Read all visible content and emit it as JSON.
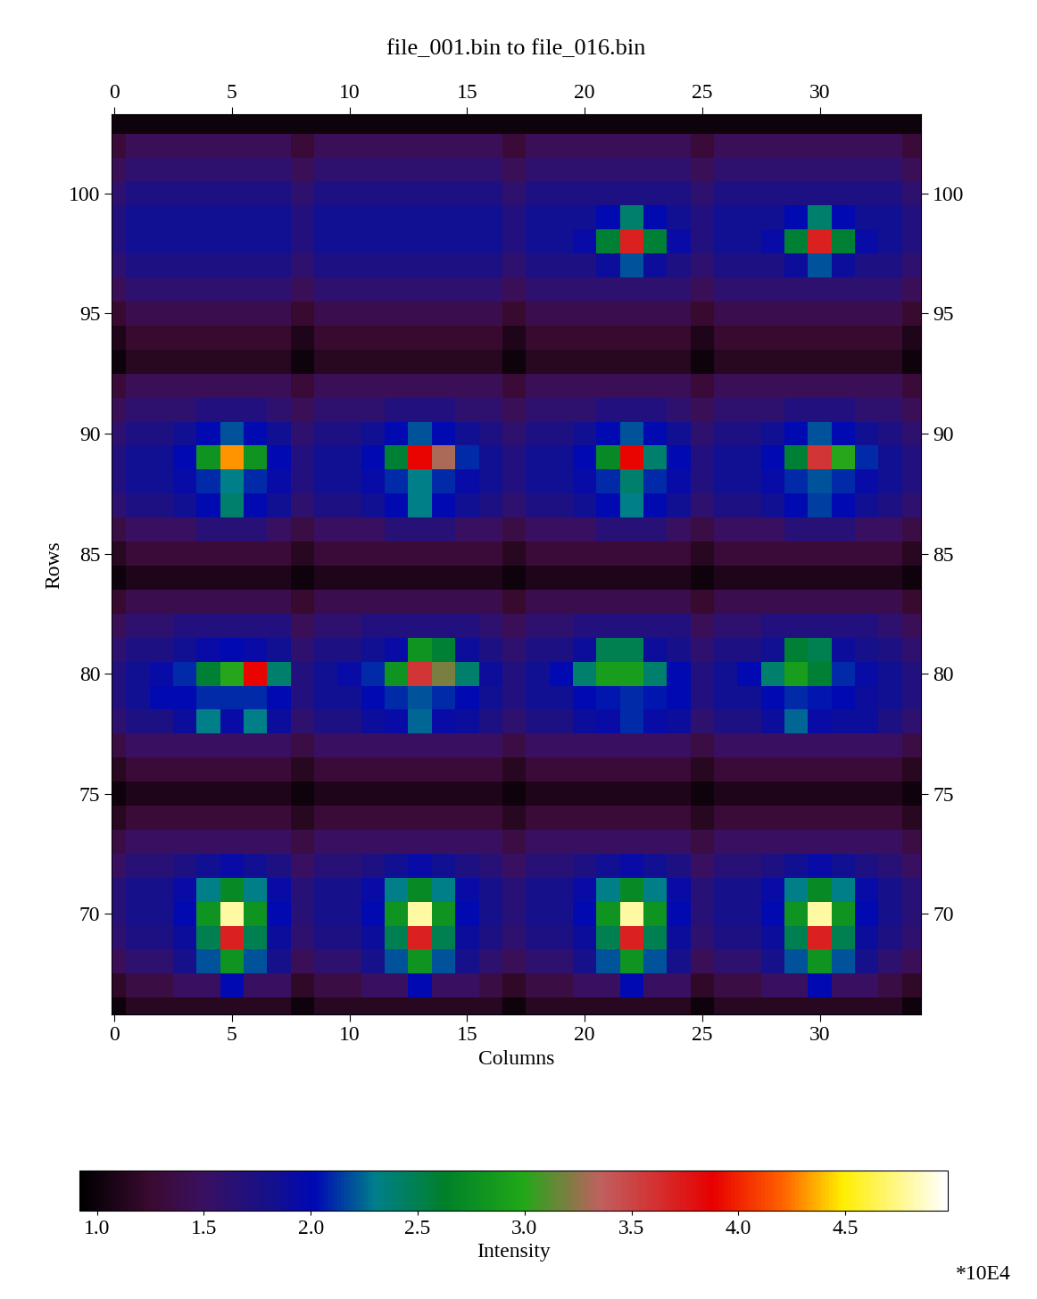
{
  "chart_data": {
    "type": "heatmap",
    "title": "file_001.bin to file_016.bin",
    "x_label": "Columns",
    "y_label": "Rows",
    "xlim": [
      -0.1,
      34.3
    ],
    "ylim": [
      65.8,
      103.3
    ],
    "xticks": [
      0,
      5,
      10,
      15,
      20,
      25,
      30
    ],
    "yticks": [
      70,
      75,
      80,
      85,
      90,
      95,
      100
    ],
    "x": [
      0,
      1,
      2,
      3,
      4,
      5,
      6,
      7,
      8,
      9,
      10,
      11,
      12,
      13,
      14,
      15,
      16,
      17,
      18,
      19,
      20,
      21,
      22,
      23,
      24,
      25,
      26,
      27,
      28,
      29,
      30,
      31,
      32,
      33,
      34
    ],
    "y": [
      66,
      67,
      68,
      69,
      70,
      71,
      72,
      73,
      74,
      75,
      76,
      77,
      78,
      79,
      80,
      81,
      82,
      83,
      84,
      85,
      86,
      87,
      88,
      89,
      90,
      91,
      92,
      93,
      94,
      95,
      96,
      97,
      98,
      99,
      100,
      101,
      102,
      103
    ],
    "cells": [
      [
        1.0,
        1.15,
        1.15,
        1.15,
        1.15,
        1.15,
        1.15,
        1.15,
        1.0,
        1.15,
        1.15,
        1.15,
        1.15,
        1.15,
        1.15,
        1.15,
        1.15,
        1.0,
        1.15,
        1.15,
        1.15,
        1.15,
        1.15,
        1.15,
        1.15,
        1.0,
        1.15,
        1.15,
        1.15,
        1.15,
        1.15,
        1.15,
        1.15,
        1.15,
        1.0
      ],
      [
        1.2,
        1.35,
        1.35,
        1.5,
        1.5,
        2.0,
        1.5,
        1.5,
        1.2,
        1.35,
        1.35,
        1.5,
        1.5,
        2.0,
        1.5,
        1.5,
        1.35,
        1.2,
        1.35,
        1.35,
        1.5,
        1.5,
        2.0,
        1.5,
        1.5,
        1.2,
        1.35,
        1.35,
        1.5,
        1.5,
        2.0,
        1.5,
        1.5,
        1.35,
        1.2
      ],
      [
        1.45,
        1.6,
        1.6,
        1.8,
        2.2,
        2.8,
        2.2,
        1.8,
        1.45,
        1.6,
        1.6,
        1.8,
        2.2,
        2.8,
        2.2,
        1.8,
        1.6,
        1.45,
        1.6,
        1.6,
        1.8,
        2.2,
        2.8,
        2.2,
        1.8,
        1.45,
        1.6,
        1.6,
        1.8,
        2.2,
        2.8,
        2.2,
        1.8,
        1.6,
        1.45
      ],
      [
        1.6,
        1.75,
        1.75,
        1.9,
        2.5,
        3.7,
        2.5,
        1.9,
        1.6,
        1.75,
        1.75,
        1.9,
        2.5,
        3.7,
        2.5,
        1.9,
        1.75,
        1.6,
        1.75,
        1.75,
        1.9,
        2.5,
        3.7,
        2.5,
        1.9,
        1.6,
        1.75,
        1.75,
        1.9,
        2.5,
        3.7,
        2.5,
        1.9,
        1.75,
        1.6
      ],
      [
        1.65,
        1.8,
        1.8,
        2.0,
        2.8,
        4.8,
        2.8,
        2.0,
        1.65,
        1.8,
        1.8,
        2.0,
        2.8,
        4.8,
        2.8,
        2.0,
        1.8,
        1.65,
        1.8,
        1.8,
        2.0,
        2.8,
        4.8,
        2.8,
        2.0,
        1.65,
        1.8,
        1.8,
        2.0,
        2.8,
        4.8,
        2.8,
        2.0,
        1.8,
        1.65
      ],
      [
        1.65,
        1.8,
        1.8,
        1.95,
        2.3,
        2.7,
        2.3,
        1.95,
        1.65,
        1.8,
        1.8,
        1.95,
        2.3,
        2.7,
        2.3,
        1.95,
        1.8,
        1.65,
        1.8,
        1.8,
        1.95,
        2.3,
        2.7,
        2.3,
        1.95,
        1.65,
        1.8,
        1.8,
        1.95,
        2.3,
        2.7,
        2.3,
        1.95,
        1.8,
        1.65
      ],
      [
        1.5,
        1.65,
        1.65,
        1.75,
        1.85,
        1.95,
        1.85,
        1.75,
        1.5,
        1.65,
        1.65,
        1.75,
        1.85,
        1.95,
        1.85,
        1.75,
        1.65,
        1.5,
        1.65,
        1.65,
        1.75,
        1.85,
        1.95,
        1.85,
        1.75,
        1.5,
        1.65,
        1.65,
        1.75,
        1.85,
        1.95,
        1.85,
        1.75,
        1.65,
        1.5
      ],
      [
        1.35,
        1.5,
        1.5,
        1.5,
        1.5,
        1.5,
        1.5,
        1.5,
        1.35,
        1.5,
        1.5,
        1.5,
        1.5,
        1.5,
        1.5,
        1.5,
        1.5,
        1.35,
        1.5,
        1.5,
        1.5,
        1.5,
        1.5,
        1.5,
        1.5,
        1.35,
        1.5,
        1.5,
        1.5,
        1.5,
        1.5,
        1.5,
        1.5,
        1.5,
        1.35
      ],
      [
        1.15,
        1.3,
        1.3,
        1.3,
        1.3,
        1.3,
        1.3,
        1.3,
        1.15,
        1.3,
        1.3,
        1.3,
        1.3,
        1.3,
        1.3,
        1.3,
        1.3,
        1.15,
        1.3,
        1.3,
        1.3,
        1.3,
        1.3,
        1.3,
        1.3,
        1.15,
        1.3,
        1.3,
        1.3,
        1.3,
        1.3,
        1.3,
        1.3,
        1.3,
        1.15
      ],
      [
        1.0,
        1.1,
        1.1,
        1.1,
        1.1,
        1.1,
        1.1,
        1.1,
        1.0,
        1.1,
        1.1,
        1.1,
        1.1,
        1.1,
        1.1,
        1.1,
        1.1,
        1.0,
        1.1,
        1.1,
        1.1,
        1.1,
        1.1,
        1.1,
        1.1,
        1.0,
        1.1,
        1.1,
        1.1,
        1.1,
        1.1,
        1.1,
        1.1,
        1.1,
        1.0
      ],
      [
        1.15,
        1.3,
        1.3,
        1.3,
        1.3,
        1.3,
        1.3,
        1.3,
        1.15,
        1.3,
        1.3,
        1.3,
        1.3,
        1.3,
        1.3,
        1.3,
        1.3,
        1.15,
        1.3,
        1.3,
        1.3,
        1.3,
        1.3,
        1.3,
        1.3,
        1.15,
        1.3,
        1.3,
        1.3,
        1.3,
        1.3,
        1.3,
        1.3,
        1.3,
        1.15
      ],
      [
        1.35,
        1.5,
        1.5,
        1.5,
        1.5,
        1.5,
        1.5,
        1.5,
        1.35,
        1.5,
        1.5,
        1.5,
        1.5,
        1.5,
        1.5,
        1.5,
        1.5,
        1.35,
        1.5,
        1.5,
        1.5,
        1.5,
        1.5,
        1.5,
        1.5,
        1.35,
        1.5,
        1.5,
        1.5,
        1.5,
        1.5,
        1.5,
        1.5,
        1.5,
        1.35
      ],
      [
        1.6,
        1.75,
        1.75,
        1.9,
        2.3,
        1.95,
        2.3,
        1.9,
        1.6,
        1.75,
        1.75,
        1.9,
        1.95,
        2.25,
        1.95,
        1.9,
        1.75,
        1.6,
        1.75,
        1.75,
        1.9,
        1.95,
        2.1,
        1.95,
        1.9,
        1.6,
        1.75,
        1.75,
        1.9,
        2.25,
        1.95,
        1.9,
        1.9,
        1.75,
        1.6
      ],
      [
        1.7,
        1.85,
        2.0,
        2.0,
        2.1,
        2.1,
        2.1,
        2.0,
        1.7,
        1.85,
        1.85,
        2.0,
        2.1,
        2.2,
        2.1,
        2.0,
        1.85,
        1.7,
        1.85,
        1.85,
        2.0,
        2.05,
        2.1,
        2.05,
        2.0,
        1.7,
        1.85,
        1.85,
        2.0,
        2.1,
        2.05,
        2.0,
        1.9,
        1.85,
        1.7
      ],
      [
        1.7,
        1.85,
        1.95,
        2.1,
        2.6,
        3.0,
        3.9,
        2.4,
        1.7,
        1.85,
        1.95,
        2.1,
        2.8,
        3.6,
        3.2,
        2.4,
        1.9,
        1.7,
        1.85,
        2.0,
        2.4,
        2.9,
        2.9,
        2.4,
        2.0,
        1.7,
        1.85,
        2.0,
        2.4,
        2.9,
        2.6,
        2.1,
        1.95,
        1.85,
        1.7
      ],
      [
        1.6,
        1.75,
        1.75,
        1.85,
        1.95,
        2.0,
        1.95,
        1.85,
        1.6,
        1.75,
        1.75,
        1.85,
        1.95,
        2.8,
        2.6,
        1.9,
        1.75,
        1.6,
        1.75,
        1.75,
        1.9,
        2.5,
        2.5,
        1.9,
        1.8,
        1.6,
        1.75,
        1.75,
        1.85,
        2.6,
        2.5,
        1.9,
        1.8,
        1.75,
        1.6
      ],
      [
        1.45,
        1.6,
        1.6,
        1.7,
        1.7,
        1.7,
        1.7,
        1.7,
        1.45,
        1.6,
        1.6,
        1.7,
        1.7,
        1.7,
        1.7,
        1.7,
        1.6,
        1.45,
        1.6,
        1.6,
        1.7,
        1.7,
        1.7,
        1.7,
        1.7,
        1.45,
        1.6,
        1.6,
        1.7,
        1.7,
        1.7,
        1.7,
        1.7,
        1.6,
        1.45
      ],
      [
        1.25,
        1.4,
        1.4,
        1.4,
        1.4,
        1.4,
        1.4,
        1.4,
        1.25,
        1.4,
        1.4,
        1.4,
        1.4,
        1.4,
        1.4,
        1.4,
        1.4,
        1.25,
        1.4,
        1.4,
        1.4,
        1.4,
        1.4,
        1.4,
        1.4,
        1.25,
        1.4,
        1.4,
        1.4,
        1.4,
        1.4,
        1.4,
        1.4,
        1.4,
        1.25
      ],
      [
        1.0,
        1.1,
        1.1,
        1.1,
        1.1,
        1.1,
        1.1,
        1.1,
        1.0,
        1.1,
        1.1,
        1.1,
        1.1,
        1.1,
        1.1,
        1.1,
        1.1,
        1.0,
        1.1,
        1.1,
        1.1,
        1.1,
        1.1,
        1.1,
        1.1,
        1.0,
        1.1,
        1.1,
        1.1,
        1.1,
        1.1,
        1.1,
        1.1,
        1.1,
        1.0
      ],
      [
        1.15,
        1.3,
        1.3,
        1.3,
        1.3,
        1.3,
        1.3,
        1.3,
        1.15,
        1.3,
        1.3,
        1.3,
        1.3,
        1.3,
        1.3,
        1.3,
        1.3,
        1.15,
        1.3,
        1.3,
        1.3,
        1.3,
        1.3,
        1.3,
        1.3,
        1.15,
        1.3,
        1.3,
        1.3,
        1.3,
        1.3,
        1.3,
        1.3,
        1.3,
        1.15
      ],
      [
        1.35,
        1.5,
        1.5,
        1.5,
        1.65,
        1.65,
        1.65,
        1.5,
        1.35,
        1.5,
        1.5,
        1.5,
        1.65,
        1.65,
        1.65,
        1.5,
        1.5,
        1.35,
        1.5,
        1.5,
        1.5,
        1.65,
        1.65,
        1.65,
        1.5,
        1.35,
        1.5,
        1.5,
        1.5,
        1.65,
        1.65,
        1.65,
        1.5,
        1.5,
        1.35
      ],
      [
        1.6,
        1.75,
        1.75,
        1.85,
        2.0,
        2.4,
        2.0,
        1.85,
        1.6,
        1.75,
        1.75,
        1.85,
        2.0,
        2.3,
        2.0,
        1.85,
        1.75,
        1.6,
        1.75,
        1.75,
        1.85,
        2.0,
        2.3,
        2.0,
        1.85,
        1.6,
        1.75,
        1.75,
        1.85,
        2.0,
        2.15,
        2.0,
        1.85,
        1.75,
        1.6
      ],
      [
        1.7,
        1.85,
        1.85,
        1.95,
        2.1,
        2.3,
        2.1,
        1.95,
        1.7,
        1.85,
        1.85,
        1.95,
        2.1,
        2.3,
        2.1,
        1.95,
        1.85,
        1.7,
        1.85,
        1.85,
        1.95,
        2.1,
        2.4,
        2.1,
        1.95,
        1.7,
        1.85,
        1.85,
        1.95,
        2.1,
        2.2,
        2.1,
        1.95,
        1.85,
        1.7
      ],
      [
        1.7,
        1.85,
        1.85,
        2.0,
        2.8,
        4.3,
        2.8,
        2.0,
        1.7,
        1.85,
        1.85,
        2.0,
        2.6,
        3.9,
        3.3,
        2.1,
        1.85,
        1.7,
        1.85,
        1.85,
        2.0,
        2.7,
        3.9,
        2.4,
        2.0,
        1.7,
        1.85,
        1.85,
        2.0,
        2.6,
        3.6,
        3.0,
        2.1,
        1.85,
        1.7
      ],
      [
        1.6,
        1.75,
        1.75,
        1.85,
        2.0,
        2.2,
        2.0,
        1.85,
        1.6,
        1.75,
        1.75,
        1.85,
        2.0,
        2.2,
        2.0,
        1.85,
        1.75,
        1.6,
        1.75,
        1.75,
        1.85,
        2.0,
        2.2,
        2.0,
        1.85,
        1.6,
        1.75,
        1.75,
        1.85,
        2.0,
        2.2,
        2.0,
        1.85,
        1.75,
        1.6
      ],
      [
        1.45,
        1.6,
        1.6,
        1.6,
        1.7,
        1.7,
        1.7,
        1.6,
        1.45,
        1.6,
        1.6,
        1.6,
        1.7,
        1.7,
        1.7,
        1.6,
        1.6,
        1.45,
        1.6,
        1.6,
        1.6,
        1.7,
        1.7,
        1.7,
        1.6,
        1.45,
        1.6,
        1.6,
        1.6,
        1.7,
        1.7,
        1.7,
        1.6,
        1.6,
        1.45
      ],
      [
        1.3,
        1.45,
        1.45,
        1.45,
        1.45,
        1.45,
        1.45,
        1.45,
        1.3,
        1.45,
        1.45,
        1.45,
        1.45,
        1.45,
        1.45,
        1.45,
        1.45,
        1.3,
        1.45,
        1.45,
        1.45,
        1.45,
        1.45,
        1.45,
        1.45,
        1.3,
        1.45,
        1.45,
        1.45,
        1.45,
        1.45,
        1.45,
        1.45,
        1.45,
        1.3
      ],
      [
        1.0,
        1.15,
        1.15,
        1.15,
        1.15,
        1.15,
        1.15,
        1.15,
        1.0,
        1.15,
        1.15,
        1.15,
        1.15,
        1.15,
        1.15,
        1.15,
        1.15,
        1.0,
        1.15,
        1.15,
        1.15,
        1.15,
        1.15,
        1.15,
        1.15,
        1.0,
        1.15,
        1.15,
        1.15,
        1.15,
        1.15,
        1.15,
        1.15,
        1.15,
        1.0
      ],
      [
        1.1,
        1.25,
        1.25,
        1.25,
        1.25,
        1.25,
        1.25,
        1.25,
        1.1,
        1.25,
        1.25,
        1.25,
        1.25,
        1.25,
        1.25,
        1.25,
        1.25,
        1.1,
        1.25,
        1.25,
        1.25,
        1.25,
        1.25,
        1.25,
        1.25,
        1.1,
        1.25,
        1.25,
        1.25,
        1.25,
        1.25,
        1.25,
        1.25,
        1.25,
        1.1
      ],
      [
        1.25,
        1.4,
        1.4,
        1.4,
        1.4,
        1.4,
        1.4,
        1.4,
        1.25,
        1.4,
        1.4,
        1.4,
        1.4,
        1.4,
        1.4,
        1.4,
        1.4,
        1.25,
        1.4,
        1.4,
        1.4,
        1.4,
        1.4,
        1.4,
        1.4,
        1.25,
        1.4,
        1.4,
        1.4,
        1.4,
        1.4,
        1.4,
        1.4,
        1.4,
        1.25
      ],
      [
        1.45,
        1.6,
        1.6,
        1.6,
        1.6,
        1.6,
        1.6,
        1.6,
        1.45,
        1.6,
        1.6,
        1.6,
        1.6,
        1.6,
        1.6,
        1.6,
        1.6,
        1.45,
        1.6,
        1.6,
        1.6,
        1.6,
        1.6,
        1.6,
        1.6,
        1.45,
        1.6,
        1.6,
        1.6,
        1.6,
        1.6,
        1.6,
        1.6,
        1.6,
        1.45
      ],
      [
        1.6,
        1.75,
        1.75,
        1.75,
        1.75,
        1.75,
        1.75,
        1.75,
        1.6,
        1.75,
        1.75,
        1.75,
        1.75,
        1.75,
        1.75,
        1.75,
        1.75,
        1.6,
        1.75,
        1.75,
        1.75,
        1.9,
        2.2,
        1.9,
        1.75,
        1.6,
        1.75,
        1.75,
        1.75,
        1.9,
        2.2,
        1.9,
        1.75,
        1.75,
        1.6
      ],
      [
        1.7,
        1.85,
        1.85,
        1.85,
        1.85,
        1.85,
        1.85,
        1.85,
        1.7,
        1.85,
        1.85,
        1.85,
        1.85,
        1.85,
        1.85,
        1.85,
        1.85,
        1.7,
        1.85,
        1.85,
        1.95,
        2.6,
        3.7,
        2.6,
        1.95,
        1.7,
        1.85,
        1.85,
        1.95,
        2.6,
        3.7,
        2.6,
        1.95,
        1.85,
        1.7
      ],
      [
        1.7,
        1.85,
        1.85,
        1.85,
        1.85,
        1.85,
        1.85,
        1.85,
        1.7,
        1.85,
        1.85,
        1.85,
        1.85,
        1.85,
        1.85,
        1.85,
        1.85,
        1.7,
        1.85,
        1.85,
        1.85,
        2.0,
        2.4,
        2.0,
        1.85,
        1.7,
        1.85,
        1.85,
        1.85,
        2.0,
        2.4,
        2.0,
        1.85,
        1.85,
        1.7
      ],
      [
        1.6,
        1.75,
        1.75,
        1.75,
        1.75,
        1.75,
        1.75,
        1.75,
        1.6,
        1.75,
        1.75,
        1.75,
        1.75,
        1.75,
        1.75,
        1.75,
        1.75,
        1.6,
        1.75,
        1.75,
        1.75,
        1.75,
        1.75,
        1.75,
        1.75,
        1.6,
        1.75,
        1.75,
        1.75,
        1.75,
        1.75,
        1.75,
        1.75,
        1.75,
        1.6
      ],
      [
        1.45,
        1.6,
        1.6,
        1.6,
        1.6,
        1.6,
        1.6,
        1.6,
        1.45,
        1.6,
        1.6,
        1.6,
        1.6,
        1.6,
        1.6,
        1.6,
        1.6,
        1.45,
        1.6,
        1.6,
        1.6,
        1.6,
        1.6,
        1.6,
        1.6,
        1.45,
        1.6,
        1.6,
        1.6,
        1.6,
        1.6,
        1.6,
        1.6,
        1.6,
        1.45
      ],
      [
        1.3,
        1.45,
        1.45,
        1.45,
        1.45,
        1.45,
        1.45,
        1.45,
        1.3,
        1.45,
        1.45,
        1.45,
        1.45,
        1.45,
        1.45,
        1.45,
        1.45,
        1.3,
        1.45,
        1.45,
        1.45,
        1.45,
        1.45,
        1.45,
        1.45,
        1.3,
        1.45,
        1.45,
        1.45,
        1.45,
        1.45,
        1.45,
        1.45,
        1.45,
        1.3
      ],
      [
        1.0,
        1.0,
        1.0,
        1.0,
        1.0,
        1.0,
        1.0,
        1.0,
        1.0,
        1.0,
        1.0,
        1.0,
        1.0,
        1.0,
        1.0,
        1.0,
        1.0,
        1.0,
        1.0,
        1.0,
        1.0,
        1.0,
        1.0,
        1.0,
        1.0,
        1.0,
        1.0,
        1.0,
        1.0,
        1.0,
        1.0,
        1.0,
        1.0,
        1.0,
        1.0
      ]
    ],
    "colorbar": {
      "label": "Intensity",
      "range": [
        0.92,
        4.98
      ],
      "ticks": [
        1.0,
        1.5,
        2.0,
        2.5,
        3.0,
        3.5,
        4.0,
        4.5
      ],
      "multiplier_label": "*10E4"
    }
  }
}
